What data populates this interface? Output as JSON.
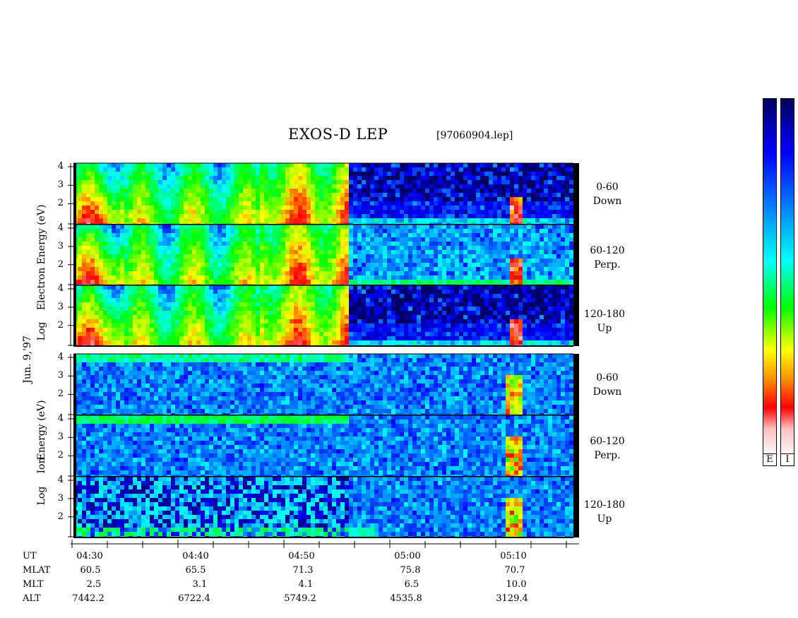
{
  "header": {
    "title": "EXOS-D LEP",
    "file": "[97060904.lep]"
  },
  "date_label": "Jun. 9,'97",
  "groups": [
    {
      "label_log": "Log",
      "label_species": "Electron",
      "label_energy": "Energy (eV)"
    },
    {
      "label_log": "Log",
      "label_species": "Ion",
      "label_energy": "Energy (eV)"
    }
  ],
  "panels": [
    {
      "range": "0-60",
      "dir": "Down"
    },
    {
      "range": "60-120",
      "dir": "Perp."
    },
    {
      "range": "120-180",
      "dir": "Up"
    },
    {
      "range": "0-60",
      "dir": "Down"
    },
    {
      "range": "60-120",
      "dir": "Perp."
    },
    {
      "range": "120-180",
      "dir": "Up"
    }
  ],
  "yticks": [
    "4",
    "3",
    "2"
  ],
  "footer": {
    "row_labels": [
      "UT",
      "MLAT",
      "MLT",
      "ALT"
    ],
    "columns": [
      {
        "UT": "04:30",
        "MLAT": "60.5",
        "MLT": "2.5",
        "ALT": "7442.2"
      },
      {
        "UT": "04:40",
        "MLAT": "65.5",
        "MLT": "3.1",
        "ALT": "6722.4"
      },
      {
        "UT": "04:50",
        "MLAT": "71.3",
        "MLT": "4.1",
        "ALT": "5749.2"
      },
      {
        "UT": "05:00",
        "MLAT": "75.8",
        "MLT": "6.5",
        "ALT": "4535.8"
      },
      {
        "UT": "05:10",
        "MLAT": "70.7",
        "MLT": "10.0",
        "ALT": "3129.4"
      }
    ]
  },
  "colorbars": [
    {
      "label": "E"
    },
    {
      "label": "I"
    }
  ],
  "chart_data": {
    "type": "heatmap",
    "title": "EXOS-D LEP",
    "xlabel": "UT",
    "ylabel": "Log Energy (eV)",
    "x_ticks": [
      "04:30",
      "04:40",
      "04:50",
      "05:00",
      "05:10"
    ],
    "y_ticks": [
      2,
      3,
      4
    ],
    "panels": [
      "Electron 0-60 Down",
      "Electron 60-120 Perp.",
      "Electron 120-180 Up",
      "Ion 0-60 Down",
      "Ion 60-120 Perp.",
      "Ion 120-180 Up"
    ],
    "colormap": [
      "#000060",
      "#0000ff",
      "#00ffff",
      "#00ff00",
      "#ffff00",
      "#ff0000",
      "#ffffff"
    ]
  }
}
